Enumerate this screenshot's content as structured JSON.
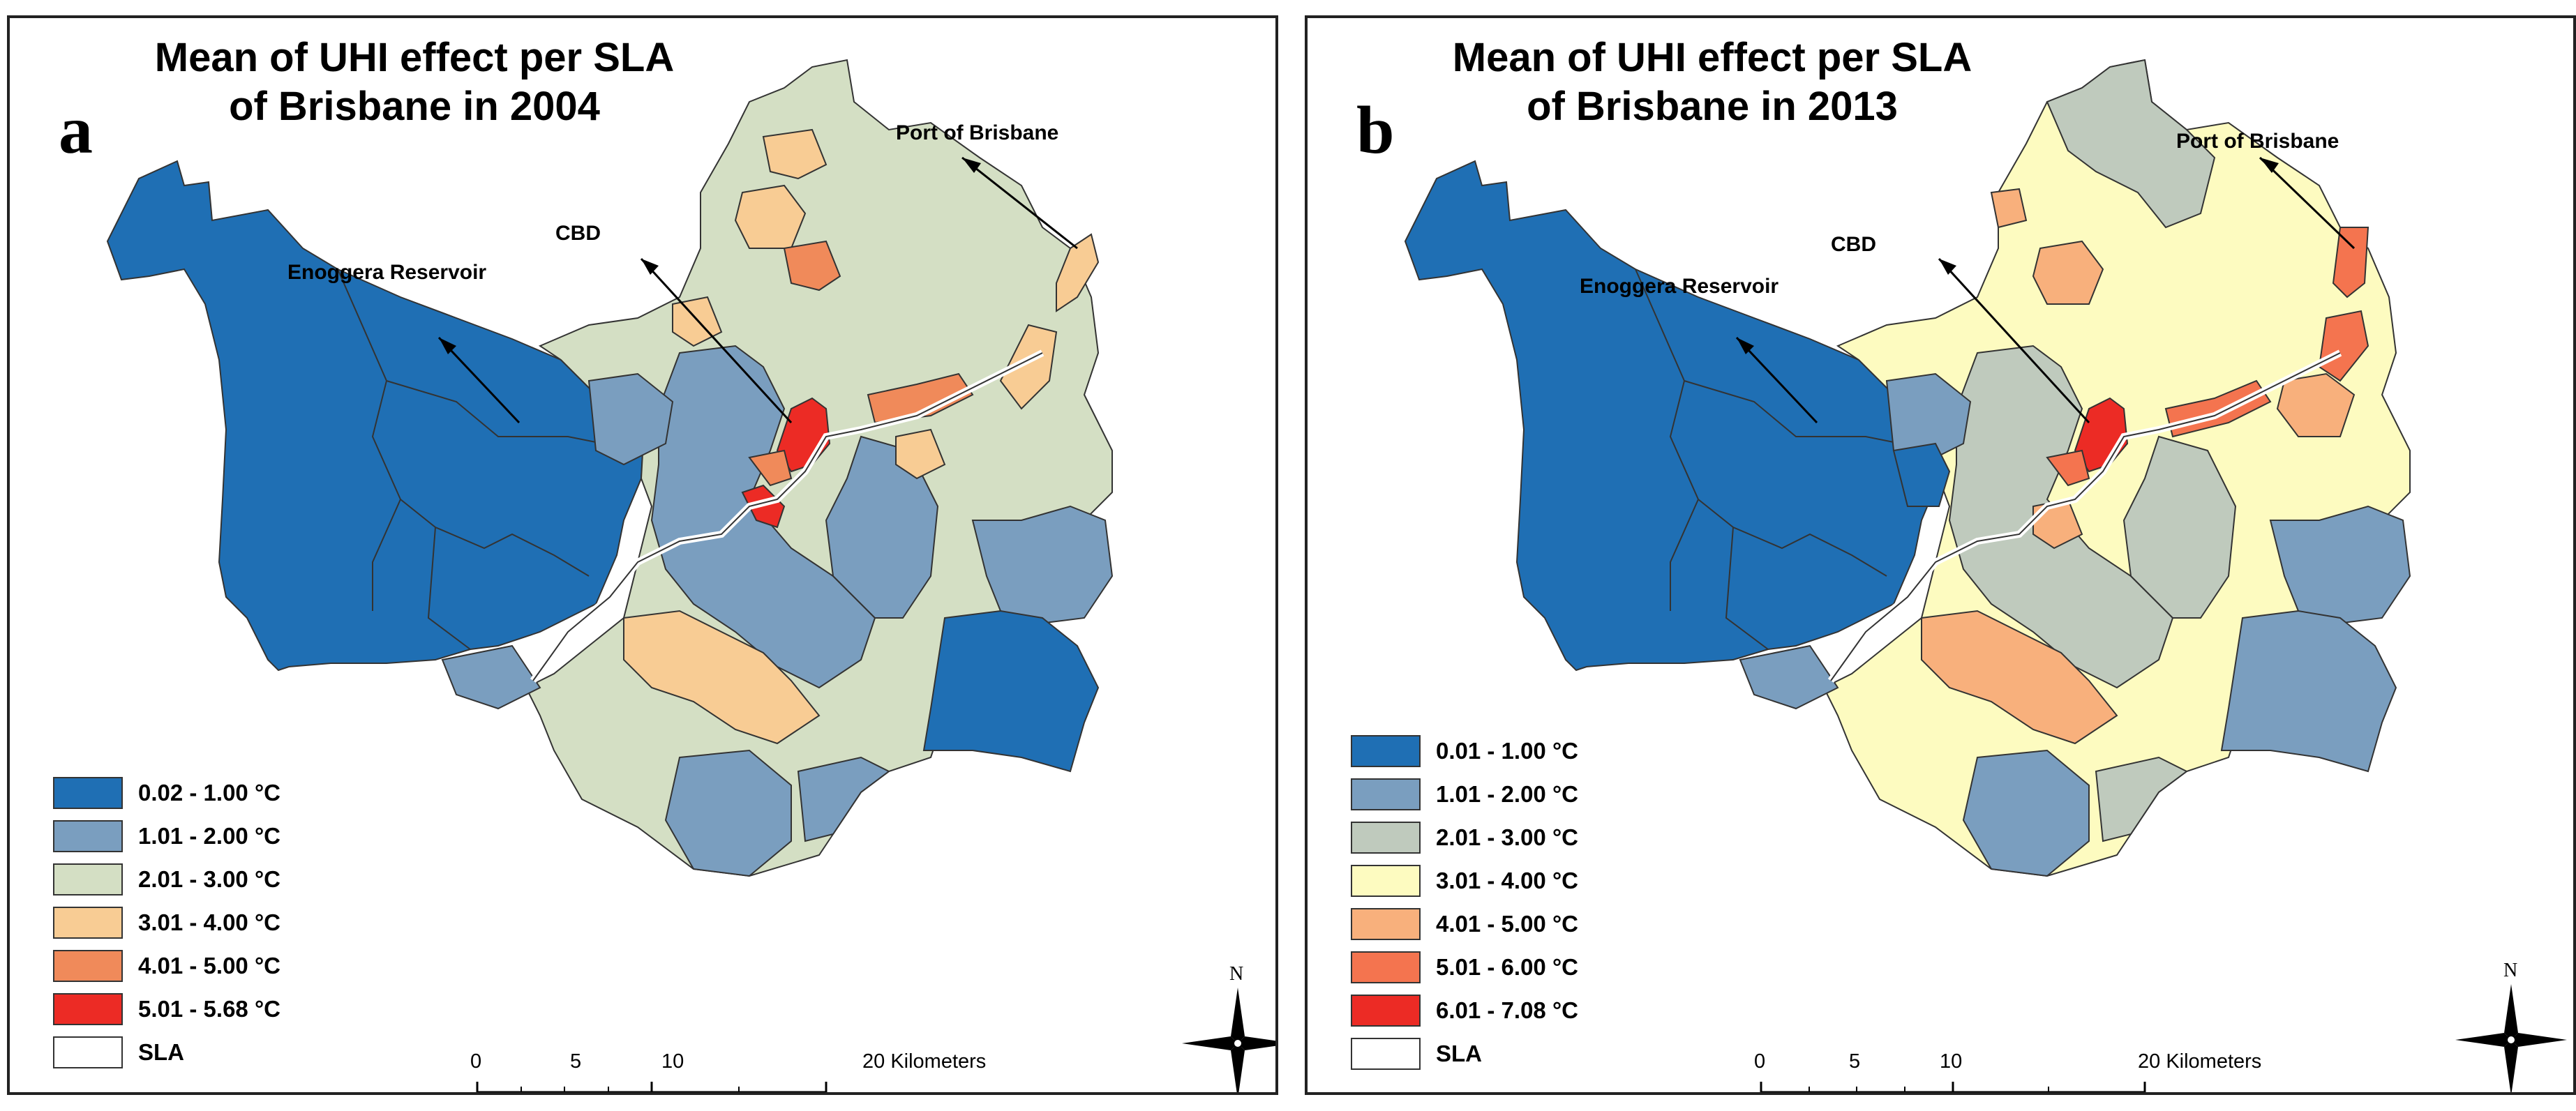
{
  "panels": [
    {
      "letter": "a",
      "title_line1": "Mean of UHI effect per SLA",
      "title_line2": "of Brisbane in 2004",
      "legend": [
        {
          "label": "0.02 - 1.00 °C",
          "color": "#1f6fb4"
        },
        {
          "label": "1.01 - 2.00 °C",
          "color": "#7a9ebf"
        },
        {
          "label": "2.01 - 3.00 °C",
          "color": "#d4dfc4"
        },
        {
          "label": "3.01 - 4.00 °C",
          "color": "#f8cc94"
        },
        {
          "label": "4.01 - 5.00 °C",
          "color": "#f08a5a"
        },
        {
          "label": "5.01 - 5.68 °C",
          "color": "#ec2b25"
        }
      ],
      "legend_sla": "SLA",
      "annotations": {
        "enoggera": "Enoggera Reservoir",
        "cbd": "CBD",
        "port": "Port of Brisbane"
      },
      "scale": {
        "ticks": [
          "0",
          "5",
          "10",
          "20 Kilometers"
        ]
      },
      "north": "N"
    },
    {
      "letter": "b",
      "title_line1": "Mean of UHI effect per SLA",
      "title_line2": "of Brisbane in 2013",
      "legend": [
        {
          "label": "0.01 - 1.00 °C",
          "color": "#1f6fb4"
        },
        {
          "label": "1.01 - 2.00 °C",
          "color": "#7a9ebf"
        },
        {
          "label": "2.01 - 3.00 °C",
          "color": "#bfcabd"
        },
        {
          "label": "3.01 - 4.00 °C",
          "color": "#fdfbc0"
        },
        {
          "label": "4.01 - 5.00 °C",
          "color": "#f8b07c"
        },
        {
          "label": "5.01 - 6.00 °C",
          "color": "#f4744f"
        },
        {
          "label": "6.01 - 7.08 °C",
          "color": "#ec2b25"
        }
      ],
      "legend_sla": "SLA",
      "annotations": {
        "enoggera": "Enoggera Reservoir",
        "cbd": "CBD",
        "port": "Port of Brisbane"
      },
      "scale": {
        "ticks": [
          "0",
          "5",
          "10",
          "20 Kilometers"
        ]
      },
      "north": "N"
    }
  ]
}
